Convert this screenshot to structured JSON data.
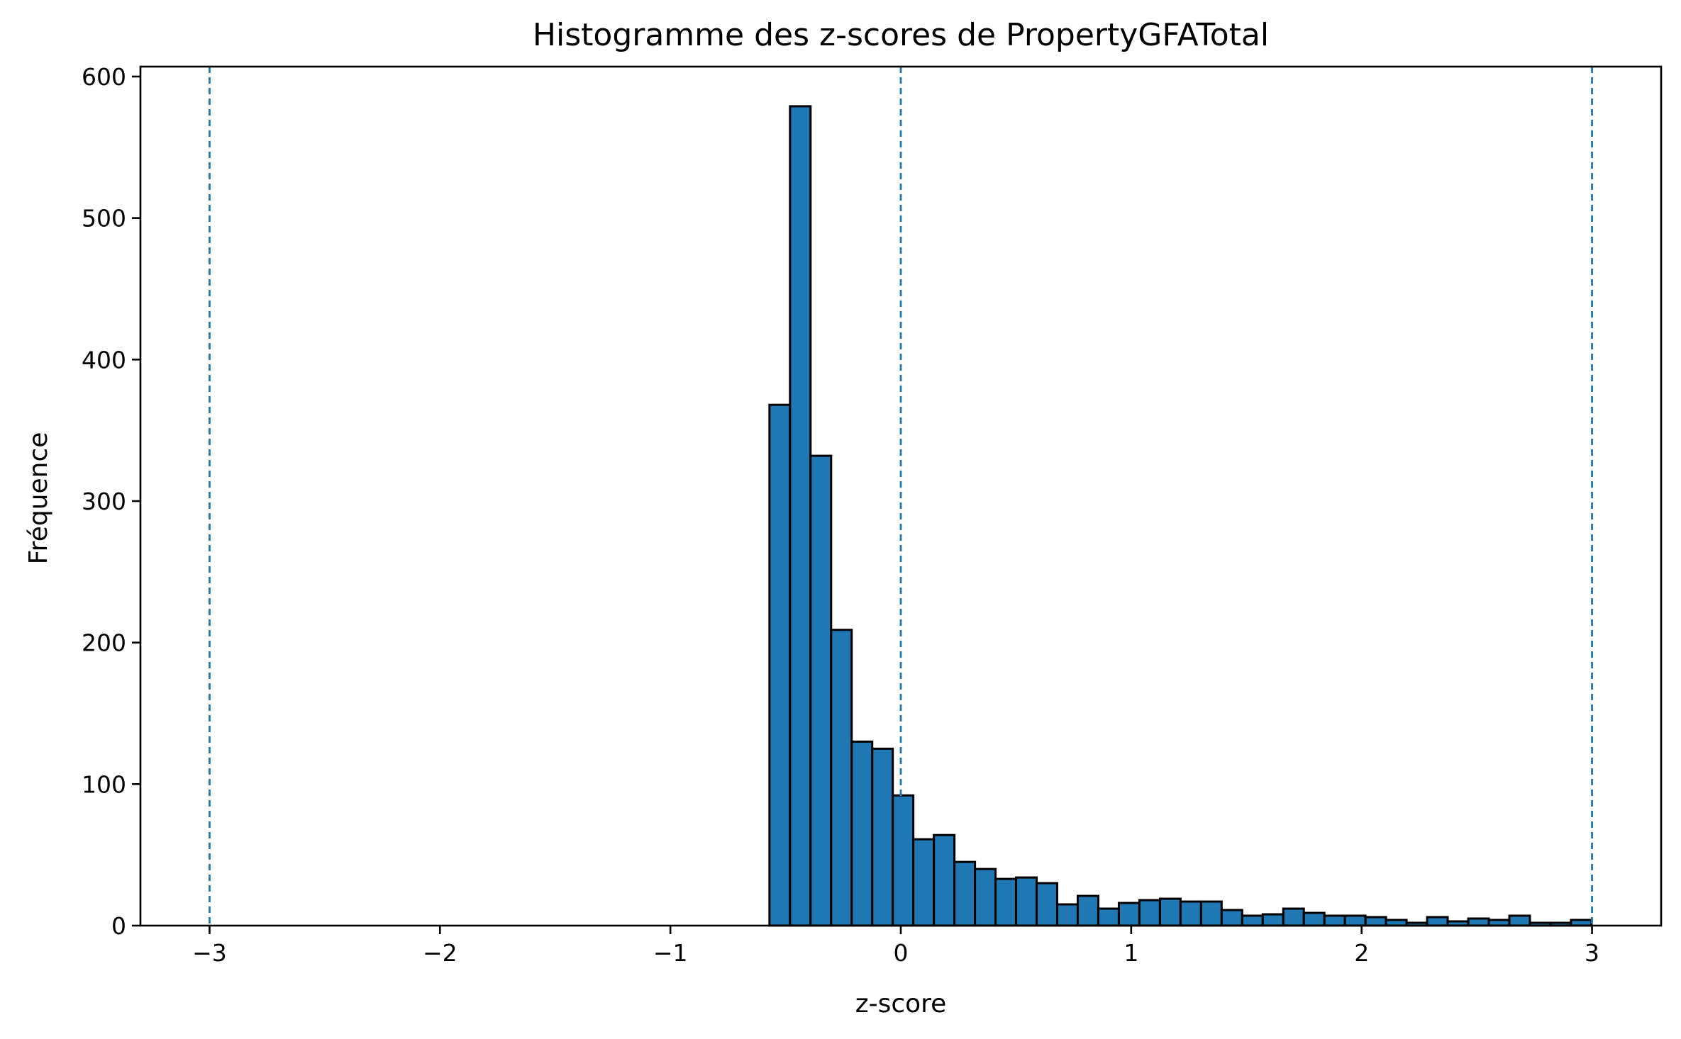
{
  "chart_data": {
    "type": "bar",
    "title": "Histogramme des z-scores de PropertyGFATotal",
    "xlabel": "z-score",
    "ylabel": "Fréquence",
    "xlim": [
      -3.3,
      3.3
    ],
    "ylim": [
      0,
      607
    ],
    "x_ticks": [
      -3,
      -2,
      -1,
      0,
      1,
      2,
      3
    ],
    "x_tick_labels": [
      "−3",
      "−2",
      "−1",
      "0",
      "1",
      "2",
      "3"
    ],
    "y_ticks": [
      0,
      100,
      200,
      300,
      400,
      500,
      600
    ],
    "y_tick_labels": [
      "0",
      "100",
      "200",
      "300",
      "400",
      "500",
      "600"
    ],
    "bin_start": -0.57,
    "bin_width": 0.0892,
    "values": [
      368,
      579,
      332,
      209,
      130,
      125,
      92,
      61,
      64,
      45,
      40,
      33,
      34,
      30,
      15,
      21,
      12,
      16,
      18,
      19,
      17,
      17,
      11,
      7,
      8,
      12,
      9,
      7,
      7,
      6,
      4,
      2,
      6,
      3,
      5,
      4,
      7,
      2,
      2,
      4
    ],
    "reference_lines": [
      -3,
      0,
      3
    ],
    "colors": {
      "bar_fill": "#1f77b4",
      "bar_edge": "#000000",
      "reference_line": "#1f77b4"
    },
    "grid": false,
    "legend": "none"
  }
}
